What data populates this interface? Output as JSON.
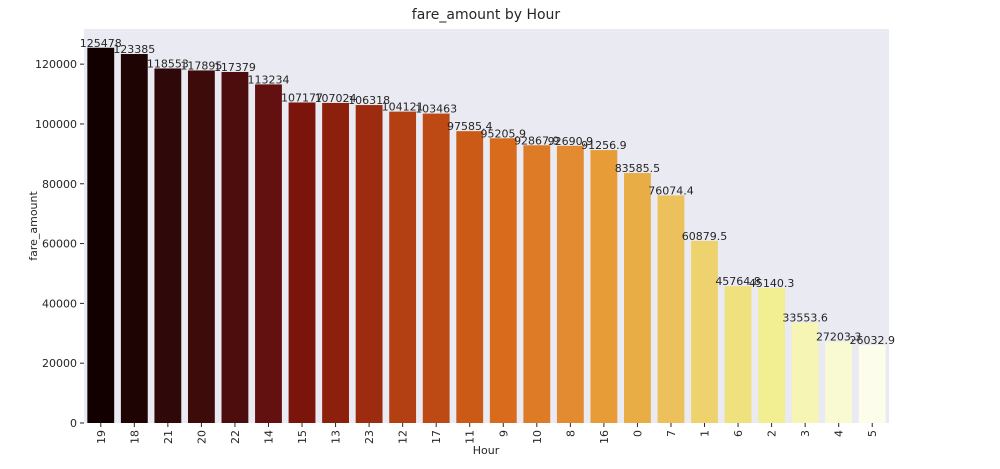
{
  "chart_data": {
    "type": "bar",
    "title": "fare_amount by Hour",
    "xlabel": "Hour",
    "ylabel": "fare_amount",
    "categories": [
      "19",
      "18",
      "21",
      "20",
      "22",
      "14",
      "15",
      "13",
      "23",
      "12",
      "17",
      "11",
      "9",
      "10",
      "8",
      "16",
      "0",
      "7",
      "1",
      "6",
      "2",
      "3",
      "4",
      "5"
    ],
    "values": [
      125478,
      123385,
      118553,
      117895,
      117379,
      113234,
      107177,
      107024,
      106318,
      104121,
      103463,
      97585.4,
      95205.9,
      92867.9,
      92690.9,
      91256.9,
      83585.5,
      76074.4,
      60879.5,
      45764.8,
      45140.3,
      33553.6,
      27203.3,
      26032.9
    ],
    "value_labels": [
      "125478",
      "123385",
      "118553",
      "117895",
      "117379",
      "113234",
      "107177",
      "107024",
      "106318",
      "104121",
      "103463",
      "97585.4",
      "95205.9",
      "92867.9",
      "92690.9",
      "91256.9",
      "83585.5",
      "76074.4",
      "60879.5",
      "45764.8",
      "45140.3",
      "33553.6",
      "27203.3",
      "26032.9"
    ],
    "ylim": [
      0,
      131751
    ],
    "yticks": [
      0,
      20000,
      40000,
      60000,
      80000,
      100000,
      120000
    ],
    "ytick_labels": [
      "0",
      "20000",
      "40000",
      "60000",
      "80000",
      "100000",
      "120000"
    ],
    "grid": false,
    "palette": [
      "#120000",
      "#1f0404",
      "#2f0909",
      "#3e0b0b",
      "#4e0d0d",
      "#631010",
      "#7b150c",
      "#8d1f0d",
      "#9c2b0f",
      "#b34013",
      "#bd4a14",
      "#cc5a17",
      "#d96c1c",
      "#de7b26",
      "#e28b30",
      "#e79c37",
      "#e9ad46",
      "#ecc05b",
      "#eed26d",
      "#efe17d",
      "#f2ee92",
      "#f6f5b4",
      "#fafad2",
      "#fdfdeb"
    ],
    "plot_background": "#eaeaf2"
  }
}
